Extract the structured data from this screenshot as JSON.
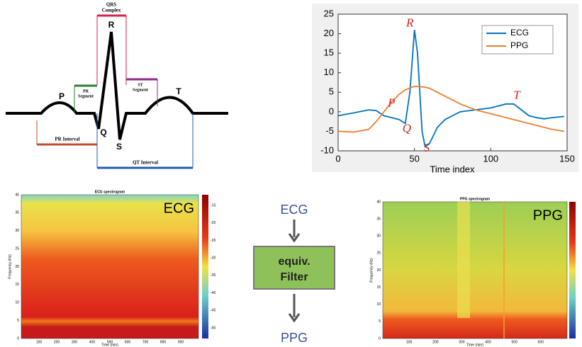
{
  "ecg_diagram": {
    "qrs": [
      "QRS",
      "Complex"
    ],
    "r": "R",
    "p": "P",
    "t": "T",
    "q": "Q",
    "s": "S",
    "pr_segment": [
      "PR",
      "Segment"
    ],
    "st_segment": [
      "ST",
      "Segment"
    ],
    "pr_interval": "PR Interval",
    "qt_interval": "QT Interval"
  },
  "chart_data": {
    "type": "line",
    "xlabel": "Time index",
    "xlim": [
      0,
      150
    ],
    "xticks": [
      0,
      50,
      100,
      150
    ],
    "ylim": [
      -10,
      25
    ],
    "yticks": [
      -10,
      -5,
      0,
      5,
      10,
      15,
      20,
      25
    ],
    "legend": "upper right",
    "annotations": [
      "P",
      "Q",
      "R",
      "S",
      "T"
    ],
    "x": [
      0,
      10,
      20,
      25,
      30,
      35,
      40,
      44,
      47,
      50,
      52,
      55,
      57,
      60,
      65,
      70,
      80,
      90,
      100,
      110,
      115,
      120,
      125,
      130,
      135,
      140,
      148
    ],
    "series": [
      {
        "name": "ECG",
        "color": "#0072bd",
        "values": [
          -1,
          -0.3,
          0.5,
          0.3,
          -1,
          -1.5,
          -2,
          -3,
          5,
          21,
          15,
          -5,
          -9,
          -8,
          -4,
          -2,
          0,
          0.5,
          1,
          2,
          2,
          0.5,
          -1,
          -1.5,
          -1.8,
          -1.5,
          -1.2
        ]
      },
      {
        "name": "PPG",
        "color": "#ed7d31",
        "values": [
          -5,
          -5.2,
          -4.5,
          -2.5,
          0,
          2.5,
          4.5,
          5.6,
          6.1,
          6.5,
          6.5,
          6.4,
          6.3,
          6,
          5,
          4,
          2,
          0.5,
          -0.5,
          -1.5,
          -2,
          -2.5,
          -3,
          -3.5,
          -4,
          -4.5,
          -5
        ]
      }
    ]
  },
  "spectrograms": [
    {
      "title": "ECG spectrogram",
      "label": "ECG",
      "ylabel": "Frequency (Hz)",
      "xlabel": "Time (min)",
      "yticks": [
        0,
        5,
        10,
        15,
        20,
        25,
        30,
        35,
        40
      ],
      "xticks": [
        100,
        200,
        300,
        400,
        500,
        600,
        700,
        800,
        900
      ],
      "cbar_ticks": [
        -15,
        -20,
        -25,
        -30,
        -35,
        -40,
        -45,
        -50
      ]
    },
    {
      "title": "PPG spectrogram",
      "label": "PPG",
      "ylabel": "Frequency (Hz)",
      "xlabel": "Time (min)",
      "yticks": [
        0,
        5,
        10,
        15,
        20,
        25,
        30,
        35,
        40
      ],
      "xticks": [
        100,
        200,
        300,
        400,
        500,
        600
      ]
    }
  ],
  "flow": {
    "input": "ECG",
    "box": [
      "equiv.",
      "Filter"
    ],
    "output": "PPG"
  }
}
